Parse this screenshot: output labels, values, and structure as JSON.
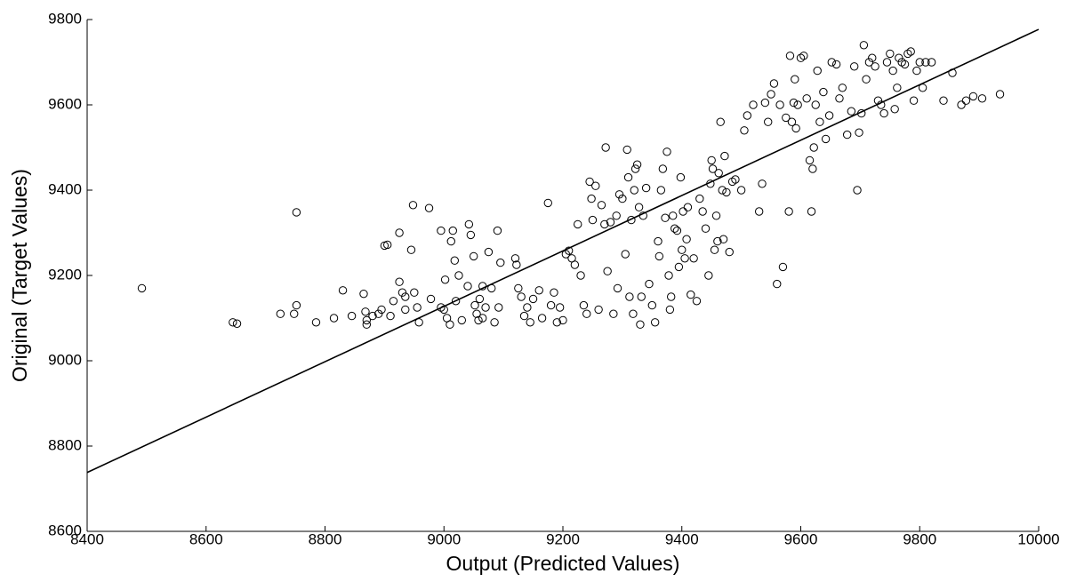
{
  "chart_data": {
    "type": "scatter",
    "xlabel": "Output (Predicted Values)",
    "ylabel": "Original (Target Values)",
    "xlim": [
      8400,
      10000
    ],
    "ylim": [
      8600,
      9800
    ],
    "xticks": [
      8400,
      8600,
      8800,
      9000,
      9200,
      9400,
      9600,
      9800,
      10000
    ],
    "yticks": [
      8600,
      8800,
      9000,
      9200,
      9400,
      9600,
      9800
    ],
    "grid": false,
    "series": [
      {
        "color": "#000000",
        "marker": "circle",
        "x": [
          8492,
          8645,
          8652,
          8725,
          8748,
          8752,
          8752,
          8785,
          8815,
          8830,
          8845,
          8865,
          8868,
          8870,
          8870,
          8880,
          8890,
          8895,
          8900,
          8905,
          8910,
          8915,
          8925,
          8925,
          8930,
          8935,
          8935,
          8945,
          8948,
          8950,
          8955,
          8958,
          8975,
          8978,
          8995,
          8995,
          9000,
          9002,
          9005,
          9010,
          9012,
          9015,
          9018,
          9020,
          9025,
          9030,
          9040,
          9042,
          9045,
          9050,
          9052,
          9055,
          9058,
          9060,
          9065,
          9065,
          9070,
          9075,
          9080,
          9085,
          9090,
          9092,
          9095,
          9120,
          9122,
          9125,
          9130,
          9135,
          9140,
          9145,
          9150,
          9160,
          9165,
          9175,
          9180,
          9185,
          9190,
          9195,
          9200,
          9205,
          9210,
          9215,
          9220,
          9225,
          9230,
          9235,
          9240,
          9245,
          9248,
          9250,
          9255,
          9260,
          9265,
          9270,
          9272,
          9275,
          9280,
          9285,
          9290,
          9292,
          9295,
          9300,
          9305,
          9308,
          9310,
          9312,
          9315,
          9318,
          9320,
          9322,
          9325,
          9328,
          9330,
          9332,
          9335,
          9340,
          9345,
          9350,
          9355,
          9360,
          9362,
          9365,
          9368,
          9372,
          9375,
          9378,
          9380,
          9382,
          9385,
          9388,
          9392,
          9395,
          9398,
          9400,
          9402,
          9405,
          9408,
          9410,
          9415,
          9420,
          9425,
          9430,
          9435,
          9440,
          9445,
          9448,
          9450,
          9452,
          9455,
          9458,
          9460,
          9462,
          9465,
          9468,
          9470,
          9472,
          9475,
          9480,
          9485,
          9490,
          9500,
          9505,
          9510,
          9520,
          9530,
          9535,
          9540,
          9545,
          9550,
          9555,
          9560,
          9565,
          9570,
          9575,
          9580,
          9582,
          9585,
          9588,
          9590,
          9592,
          9595,
          9600,
          9605,
          9610,
          9615,
          9618,
          9620,
          9622,
          9625,
          9628,
          9632,
          9638,
          9642,
          9648,
          9652,
          9660,
          9665,
          9670,
          9678,
          9685,
          9690,
          9695,
          9698,
          9702,
          9706,
          9710,
          9715,
          9720,
          9725,
          9730,
          9735,
          9740,
          9745,
          9750,
          9755,
          9758,
          9762,
          9765,
          9770,
          9775,
          9780,
          9785,
          9790,
          9795,
          9800,
          9805,
          9810,
          9820,
          9840,
          9855,
          9870,
          9878,
          9890,
          9905,
          9935
        ],
        "values": [
          9170,
          9090,
          9087,
          9110,
          9110,
          9130,
          9348,
          9090,
          9100,
          9165,
          9105,
          9157,
          9115,
          9095,
          9085,
          9105,
          9110,
          9120,
          9270,
          9272,
          9105,
          9140,
          9300,
          9185,
          9160,
          9150,
          9120,
          9260,
          9365,
          9160,
          9125,
          9090,
          9358,
          9145,
          9305,
          9125,
          9120,
          9190,
          9100,
          9085,
          9280,
          9305,
          9235,
          9140,
          9200,
          9095,
          9175,
          9320,
          9295,
          9245,
          9130,
          9110,
          9095,
          9145,
          9100,
          9175,
          9125,
          9255,
          9170,
          9090,
          9305,
          9125,
          9230,
          9240,
          9225,
          9170,
          9150,
          9105,
          9125,
          9090,
          9145,
          9165,
          9100,
          9370,
          9130,
          9160,
          9090,
          9125,
          9095,
          9250,
          9258,
          9240,
          9225,
          9320,
          9200,
          9130,
          9110,
          9420,
          9380,
          9330,
          9410,
          9120,
          9365,
          9320,
          9500,
          9210,
          9325,
          9110,
          9340,
          9170,
          9390,
          9380,
          9250,
          9495,
          9430,
          9150,
          9330,
          9110,
          9400,
          9450,
          9460,
          9360,
          9085,
          9150,
          9340,
          9405,
          9180,
          9130,
          9090,
          9280,
          9245,
          9400,
          9450,
          9335,
          9490,
          9200,
          9120,
          9150,
          9340,
          9310,
          9305,
          9220,
          9430,
          9260,
          9350,
          9240,
          9285,
          9360,
          9155,
          9240,
          9140,
          9380,
          9350,
          9310,
          9200,
          9415,
          9470,
          9450,
          9260,
          9340,
          9280,
          9440,
          9560,
          9400,
          9285,
          9480,
          9395,
          9255,
          9420,
          9425,
          9400,
          9540,
          9575,
          9600,
          9350,
          9415,
          9605,
          9560,
          9625,
          9650,
          9180,
          9600,
          9220,
          9570,
          9350,
          9715,
          9560,
          9605,
          9660,
          9545,
          9600,
          9710,
          9715,
          9615,
          9470,
          9350,
          9450,
          9500,
          9600,
          9680,
          9560,
          9630,
          9520,
          9575,
          9700,
          9695,
          9615,
          9640,
          9530,
          9585,
          9690,
          9400,
          9535,
          9580,
          9740,
          9660,
          9700,
          9710,
          9690,
          9610,
          9600,
          9580,
          9700,
          9720,
          9680,
          9590,
          9640,
          9710,
          9700,
          9695,
          9720,
          9725,
          9610,
          9680,
          9700,
          9640,
          9700,
          9700,
          9610,
          9675,
          9600,
          9610,
          9620,
          9615,
          9625
        ]
      }
    ],
    "fit_line": {
      "color": "#000000",
      "x": [
        8400,
        10000
      ],
      "values": [
        8738,
        9777
      ]
    }
  }
}
